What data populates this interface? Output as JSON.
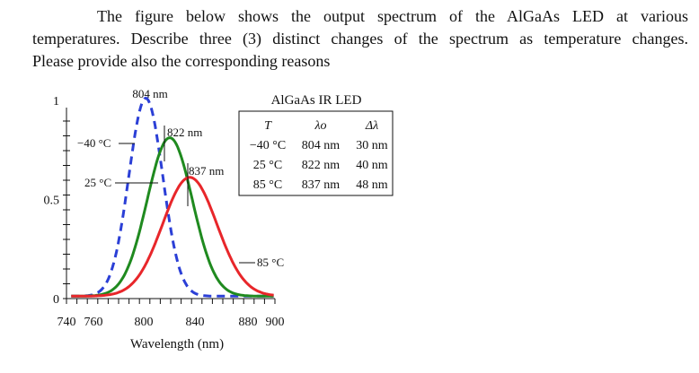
{
  "question": {
    "line1": "The figure below shows the output spectrum of the AlGaAs LED at various",
    "line2": "temperatures. Describe three (3) distinct changes of the spectrum as temperature changes.",
    "line3": "Please provide also the corresponding reasons"
  },
  "chart_data": {
    "type": "line",
    "title": "AlGaAs IR LED",
    "xlabel": "Wavelength (nm)",
    "ylabel": "",
    "x_ticks": [
      "740",
      "760",
      "800",
      "840",
      "880",
      "900"
    ],
    "y_ticks": [
      "0",
      "0.5",
      "1"
    ],
    "xlim": [
      735,
      905
    ],
    "ylim": [
      0,
      1.05
    ],
    "grid": false,
    "series": [
      {
        "name": "-40 °C",
        "label": "−40 °C",
        "peak": 804,
        "fwhm": 30,
        "amplitude": 1.0,
        "color": "#2b3fd6",
        "style": "dashed"
      },
      {
        "name": "25 °C",
        "label": "25 °C",
        "peak": 822,
        "fwhm": 40,
        "amplitude": 0.8,
        "color": "#1f8a1f",
        "style": "solid"
      },
      {
        "name": "85 °C",
        "label": "85 °C",
        "peak": 837,
        "fwhm": 48,
        "amplitude": 0.6,
        "color": "#e8262a",
        "style": "solid"
      }
    ],
    "annotations": {
      "peak_804": "804 nm",
      "peak_822": "822 nm",
      "peak_837": "837 nm"
    },
    "table": {
      "headers": [
        "T",
        "λo",
        "Δλ"
      ],
      "rows": [
        [
          "−40 °C",
          "804 nm",
          "30 nm"
        ],
        [
          "25 °C",
          "822 nm",
          "40 nm"
        ],
        [
          "85 °C",
          "837 nm",
          "48 nm"
        ]
      ]
    }
  }
}
